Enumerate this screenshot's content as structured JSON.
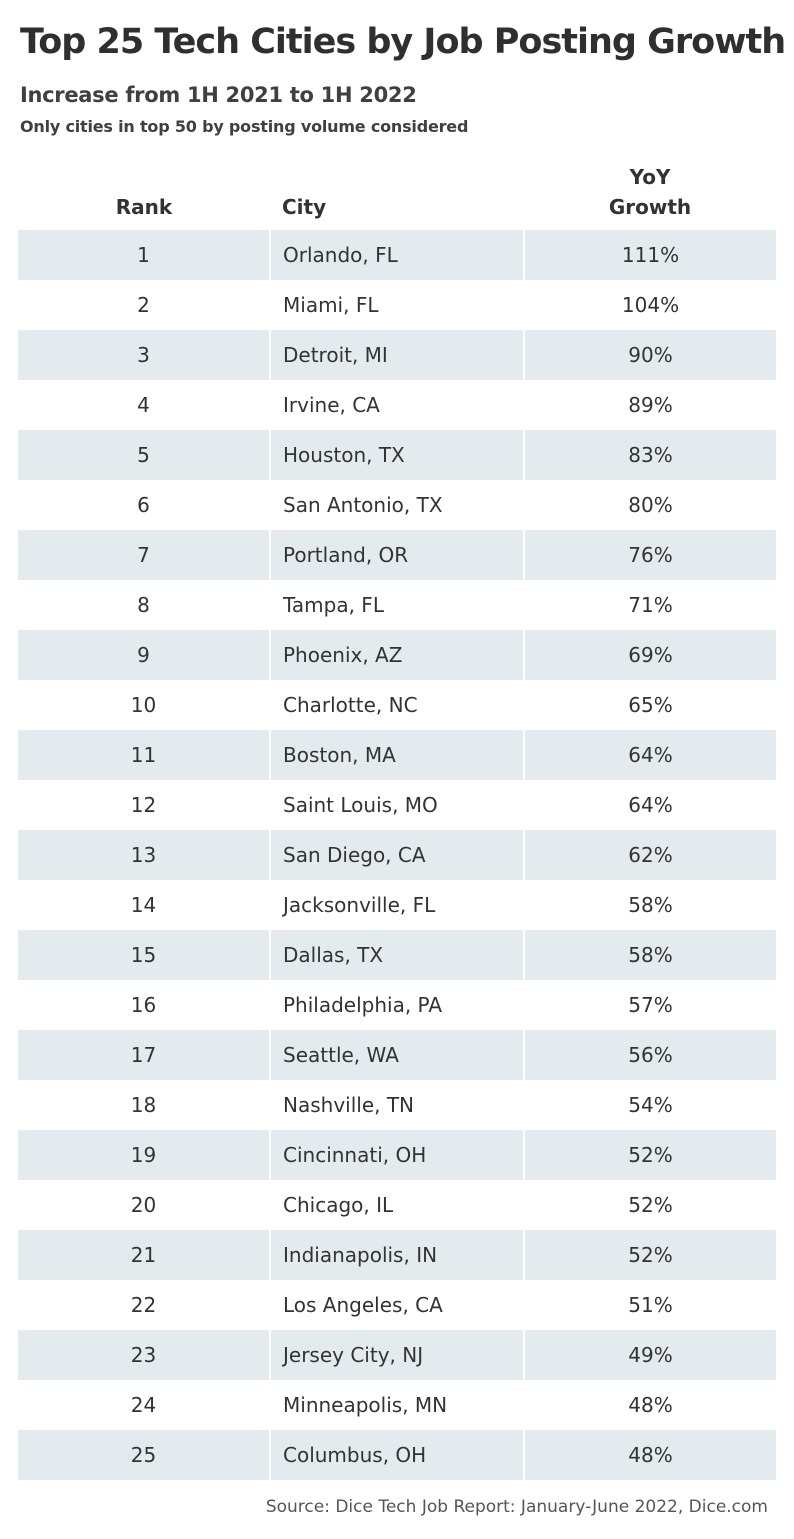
{
  "title": "Top 25 Tech Cities by Job Posting Growth",
  "subtitle": "Increase from 1H 2021 to 1H 2022",
  "note": "Only cities in top 50 by posting volume considered",
  "source": "Source: Dice Tech Job Report: January-June 2022, Dice.com",
  "colors": {
    "shaded_row": "#e4ebee",
    "text": "#333333"
  },
  "chart_data": {
    "type": "table",
    "columns": [
      "Rank",
      "City",
      "YoY Growth"
    ],
    "column_lines": [
      [
        "Rank"
      ],
      [
        "City"
      ],
      [
        "YoY",
        "Growth"
      ]
    ],
    "rows": [
      [
        "1",
        "Orlando, FL",
        "111%"
      ],
      [
        "2",
        "Miami, FL",
        "104%"
      ],
      [
        "3",
        "Detroit, MI",
        "90%"
      ],
      [
        "4",
        "Irvine, CA",
        "89%"
      ],
      [
        "5",
        "Houston, TX",
        "83%"
      ],
      [
        "6",
        "San Antonio, TX",
        "80%"
      ],
      [
        "7",
        "Portland, OR",
        "76%"
      ],
      [
        "8",
        "Tampa, FL",
        "71%"
      ],
      [
        "9",
        "Phoenix, AZ",
        "69%"
      ],
      [
        "10",
        "Charlotte, NC",
        "65%"
      ],
      [
        "11",
        "Boston, MA",
        "64%"
      ],
      [
        "12",
        "Saint Louis, MO",
        "64%"
      ],
      [
        "13",
        "San Diego, CA",
        "62%"
      ],
      [
        "14",
        "Jacksonville, FL",
        "58%"
      ],
      [
        "15",
        "Dallas, TX",
        "58%"
      ],
      [
        "16",
        "Philadelphia, PA",
        "57%"
      ],
      [
        "17",
        "Seattle, WA",
        "56%"
      ],
      [
        "18",
        "Nashville, TN",
        "54%"
      ],
      [
        "19",
        "Cincinnati, OH",
        "52%"
      ],
      [
        "20",
        "Chicago, IL",
        "52%"
      ],
      [
        "21",
        "Indianapolis, IN",
        "52%"
      ],
      [
        "22",
        "Los Angeles, CA",
        "51%"
      ],
      [
        "23",
        "Jersey City, NJ",
        "49%"
      ],
      [
        "24",
        "Minneapolis, MN",
        "48%"
      ],
      [
        "25",
        "Columbus, OH",
        "48%"
      ]
    ],
    "banded_rows": true
  }
}
